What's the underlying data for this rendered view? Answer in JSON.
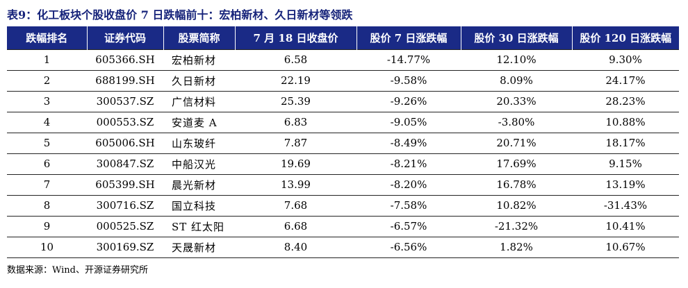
{
  "caption": "表9：化工板块个股收盘价 7 日跌幅前十：宏柏新材、久日新材等领跌",
  "table": {
    "headers": [
      "跌幅排名",
      "证券代码",
      "股票简称",
      "7 月 18 日收盘价",
      "股价 7 日涨跌幅",
      "股价 30 日涨跌幅",
      "股价 120 日涨跌幅"
    ],
    "rows": [
      [
        "1",
        "605366.SH",
        "宏柏新材",
        "6.58",
        "-14.77%",
        "12.10%",
        "9.30%"
      ],
      [
        "2",
        "688199.SH",
        "久日新材",
        "22.19",
        "-9.58%",
        "8.09%",
        "24.17%"
      ],
      [
        "3",
        "300537.SZ",
        "广信材料",
        "25.39",
        "-9.26%",
        "20.33%",
        "28.23%"
      ],
      [
        "4",
        "000553.SZ",
        "安道麦 A",
        "6.83",
        "-9.05%",
        "-3.80%",
        "10.88%"
      ],
      [
        "5",
        "605006.SH",
        "山东玻纤",
        "7.87",
        "-8.49%",
        "20.71%",
        "18.17%"
      ],
      [
        "6",
        "300847.SZ",
        "中船汉光",
        "19.69",
        "-8.21%",
        "17.69%",
        "9.15%"
      ],
      [
        "7",
        "605399.SH",
        "晨光新材",
        "13.99",
        "-8.20%",
        "16.78%",
        "13.19%"
      ],
      [
        "8",
        "300716.SZ",
        "国立科技",
        "7.68",
        "-7.58%",
        "10.82%",
        "-31.43%"
      ],
      [
        "9",
        "000525.SZ",
        "ST 红太阳",
        "6.68",
        "-6.57%",
        "-21.32%",
        "10.41%"
      ],
      [
        "10",
        "300169.SZ",
        "天晟新材",
        "8.40",
        "-6.56%",
        "1.82%",
        "10.67%"
      ]
    ]
  },
  "source": "数据来源：Wind、开源证券研究所",
  "colors": {
    "header_bg": "#1a2a86",
    "caption": "#16237a"
  }
}
